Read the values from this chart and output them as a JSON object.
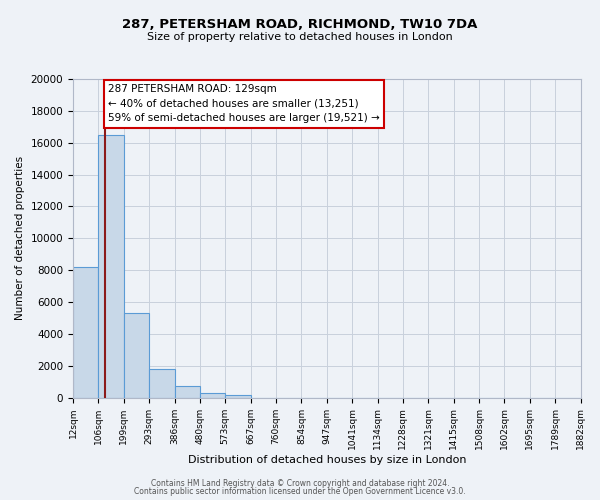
{
  "title": "287, PETERSHAM ROAD, RICHMOND, TW10 7DA",
  "subtitle": "Size of property relative to detached houses in London",
  "xlabel": "Distribution of detached houses by size in London",
  "ylabel": "Number of detached properties",
  "bin_labels": [
    "12sqm",
    "106sqm",
    "199sqm",
    "293sqm",
    "386sqm",
    "480sqm",
    "573sqm",
    "667sqm",
    "760sqm",
    "854sqm",
    "947sqm",
    "1041sqm",
    "1134sqm",
    "1228sqm",
    "1321sqm",
    "1415sqm",
    "1508sqm",
    "1602sqm",
    "1695sqm",
    "1789sqm",
    "1882sqm"
  ],
  "bar_heights": [
    8200,
    16500,
    5300,
    1800,
    700,
    300,
    150,
    0,
    0,
    0,
    0,
    0,
    0,
    0,
    0,
    0,
    0,
    0,
    0,
    0,
    0
  ],
  "bar_color": "#c8d8e8",
  "bar_edge_color": "#5b9bd5",
  "property_label": "287 PETERSHAM ROAD: 129sqm",
  "annotation_line1": "← 40% of detached houses are smaller (13,251)",
  "annotation_line2": "59% of semi-detached houses are larger (19,521) →",
  "vline_color": "#8b1a1a",
  "ylim": [
    0,
    20000
  ],
  "yticks": [
    0,
    2000,
    4000,
    6000,
    8000,
    10000,
    12000,
    14000,
    16000,
    18000,
    20000
  ],
  "annotation_box_color": "#ffffff",
  "annotation_box_edge": "#cc0000",
  "grid_color": "#c8d0dc",
  "bg_color": "#eef2f7",
  "footer1": "Contains HM Land Registry data © Crown copyright and database right 2024.",
  "footer2": "Contains public sector information licensed under the Open Government Licence v3.0."
}
